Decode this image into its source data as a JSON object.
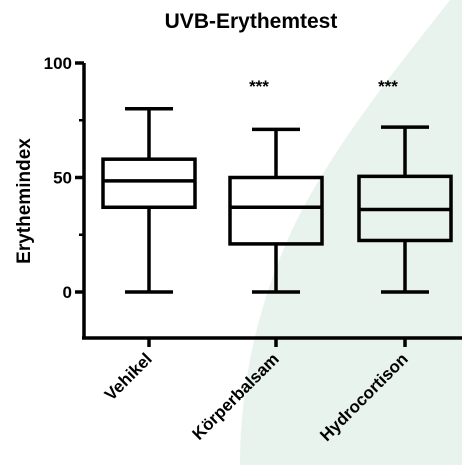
{
  "chart_data": {
    "type": "boxplot",
    "title": "UVB-Erythemtest",
    "xlabel": "",
    "ylabel": "Erythemindex",
    "ylim": [
      -20,
      100
    ],
    "yticks": [
      0,
      50,
      100
    ],
    "grid": false,
    "categories": [
      "Vehikel",
      "Körperbalsam",
      "Hydrocortison"
    ],
    "boxes": [
      {
        "category": "Vehikel",
        "min": 0,
        "q1": 37,
        "median": 48.5,
        "q3": 58,
        "max": 80,
        "significance": ""
      },
      {
        "category": "Körperbalsam",
        "min": 0,
        "q1": 21,
        "median": 37,
        "q3": 50,
        "max": 71,
        "significance": "***"
      },
      {
        "category": "Hydrocortison",
        "min": 0,
        "q1": 22.5,
        "median": 36,
        "q3": 50.5,
        "max": 72,
        "significance": "***"
      }
    ],
    "colors": {
      "box_stroke": "#000000",
      "background_leaf": "#e9f3ee"
    }
  }
}
